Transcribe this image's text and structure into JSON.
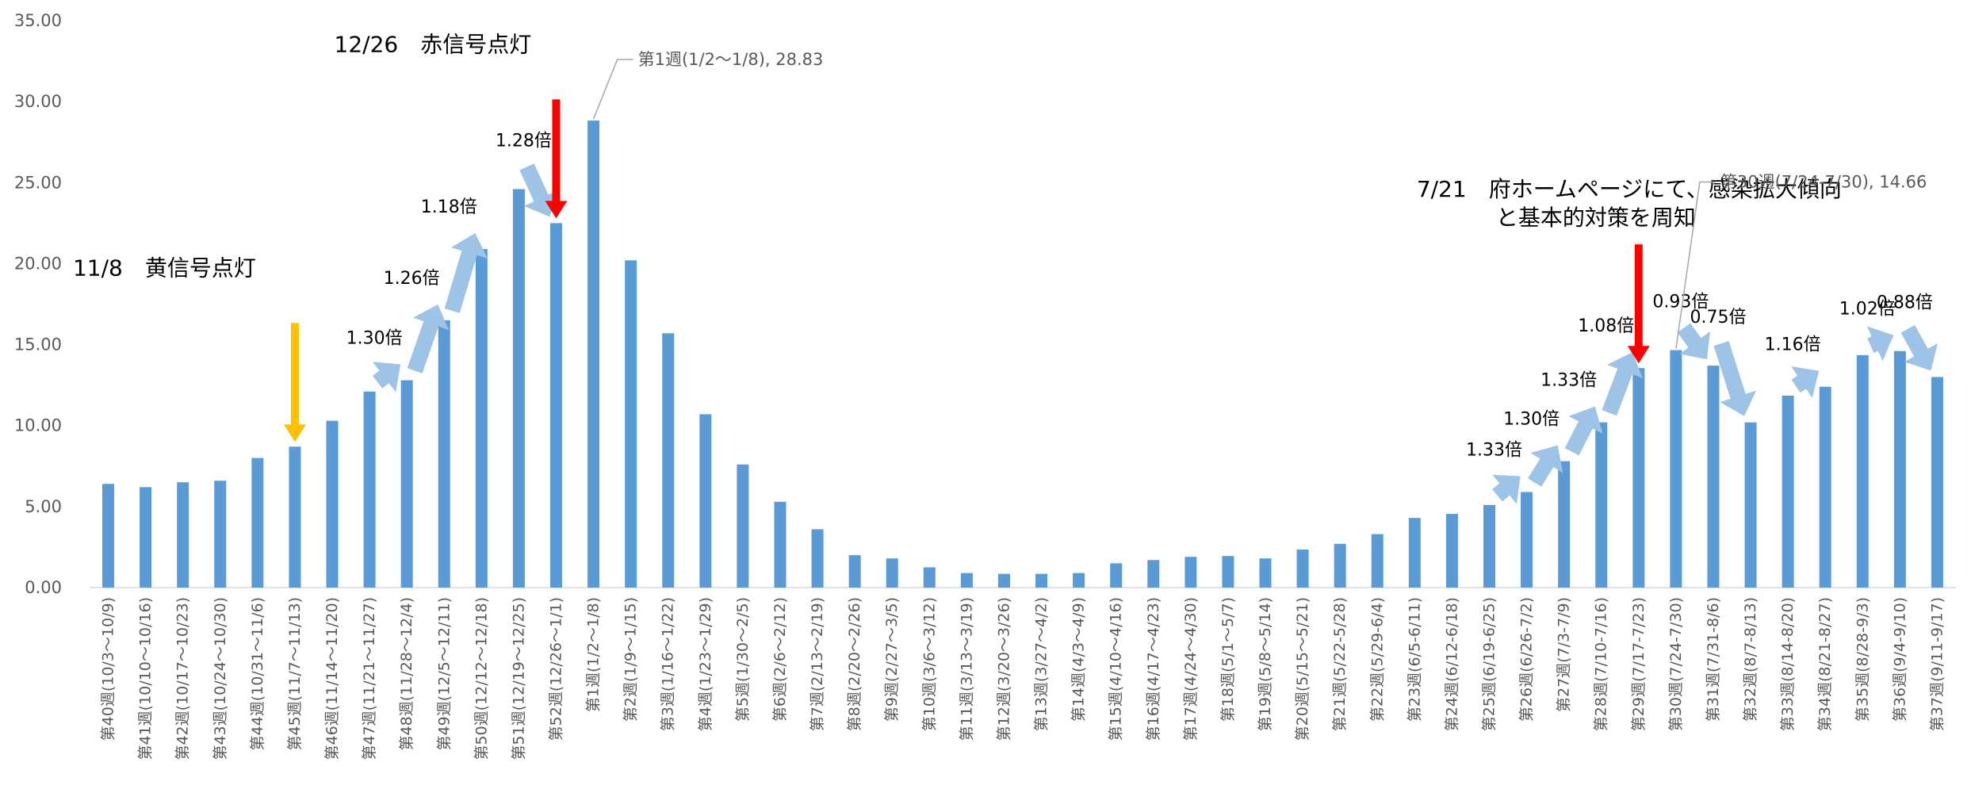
{
  "chart_data": {
    "type": "bar",
    "categories": [
      "第40週(10/3～10/9)",
      "第41週(10/10～10/16)",
      "第42週(10/17～10/23)",
      "第43週(10/24～10/30)",
      "第44週(10/31～11/6)",
      "第45週(11/7～11/13)",
      "第46週(11/14～11/20)",
      "第47週(11/21～11/27)",
      "第48週(11/28～12/4)",
      "第49週(12/5～12/11)",
      "第50週(12/12～12/18)",
      "第51週(12/19～12/25)",
      "第52週(12/26～1/1)",
      "第1週(1/2～1/8)",
      "第2週(1/9～1/15)",
      "第3週(1/16～1/22)",
      "第4週(1/23～1/29)",
      "第5週(1/30～2/5)",
      "第6週(2/6～2/12)",
      "第7週(2/13～2/19)",
      "第8週(2/20～2/26)",
      "第9週(2/27～3/5)",
      "第10週(3/6～3/12)",
      "第11週(3/13～3/19)",
      "第12週(3/20～3/26)",
      "第13週(3/27～4/2)",
      "第14週(4/3～4/9)",
      "第15週(4/10～4/16)",
      "第16週(4/17～4/23)",
      "第17週(4/24～4/30)",
      "第18週(5/1～5/7)",
      "第19週(5/8～5/14)",
      "第20週(5/15～5/21)",
      "第21週(5/22-5/28)",
      "第22週(5/29-6/4)",
      "第23週(6/5-6/11)",
      "第24週(6/12-6/18)",
      "第25週(6/19-6/25)",
      "第26週(6/26-7/2)",
      "第27週(7/3-7/9)",
      "第28週(7/10-7/16)",
      "第29週(7/17-7/23)",
      "第30週(7/24-7/30)",
      "第31週(7/31-8/6)",
      "第32週(8/7-8/13)",
      "第33週(8/14-8/20)",
      "第34週(8/21-8/27)",
      "第35週(8/28-9/3)",
      "第36週(9/4-9/10)",
      "第37週(9/11-9/17)"
    ],
    "values": [
      6.4,
      6.2,
      6.5,
      6.6,
      8.0,
      8.7,
      10.3,
      12.1,
      12.8,
      16.5,
      20.9,
      24.6,
      22.5,
      28.83,
      20.2,
      15.7,
      10.7,
      7.6,
      5.3,
      3.6,
      2.0,
      1.8,
      1.25,
      0.9,
      0.85,
      0.85,
      0.9,
      1.5,
      1.7,
      1.9,
      1.95,
      1.8,
      2.35,
      2.7,
      3.3,
      4.3,
      4.55,
      5.1,
      5.9,
      7.8,
      10.2,
      13.55,
      14.66,
      13.7,
      10.2,
      11.85,
      12.4,
      14.35,
      14.6,
      13.0
    ],
    "ylim": [
      0,
      35
    ],
    "yticks": [
      "0.00",
      "5.00",
      "10.00",
      "15.00",
      "20.00",
      "25.00",
      "30.00",
      "35.00"
    ],
    "bar_color": "#5b9bd5",
    "grid": false,
    "legend": "none",
    "callouts": [
      {
        "index": 13,
        "text": "第1週(1/2～1/8), 28.83"
      },
      {
        "index": 42,
        "text": "第30週(7/24-7/30), 14.66"
      }
    ],
    "ratio_labels": [
      {
        "after": 8,
        "text": "1.30倍"
      },
      {
        "after": 9,
        "text": "1.26倍"
      },
      {
        "after": 10,
        "text": "1.18倍"
      },
      {
        "after": 12,
        "text": "1.28倍"
      },
      {
        "after": 38,
        "text": "1.33倍"
      },
      {
        "after": 39,
        "text": "1.30倍"
      },
      {
        "after": 40,
        "text": "1.33倍"
      },
      {
        "after": 41,
        "text": "1.08倍"
      },
      {
        "after": 43,
        "text": "0.93倍"
      },
      {
        "after": 44,
        "text": "0.75倍"
      },
      {
        "after": 46,
        "text": "1.16倍"
      },
      {
        "after": 48,
        "text": "1.02倍"
      },
      {
        "after": 49,
        "text": "0.88倍"
      }
    ],
    "events": [
      {
        "week_index": 5,
        "lines": [
          "11/8　黄信号点灯"
        ],
        "color": "#ffc000"
      },
      {
        "week_index": 12,
        "lines": [
          "12/26　赤信号点灯"
        ],
        "color": "#ff0000"
      },
      {
        "week_index": 41,
        "lines": [
          "7/21　府ホームページにて、感染拡大傾向",
          "と基本的対策を周知"
        ],
        "color": "#ff0000"
      }
    ],
    "arrow_color": "#9dc3e6"
  }
}
